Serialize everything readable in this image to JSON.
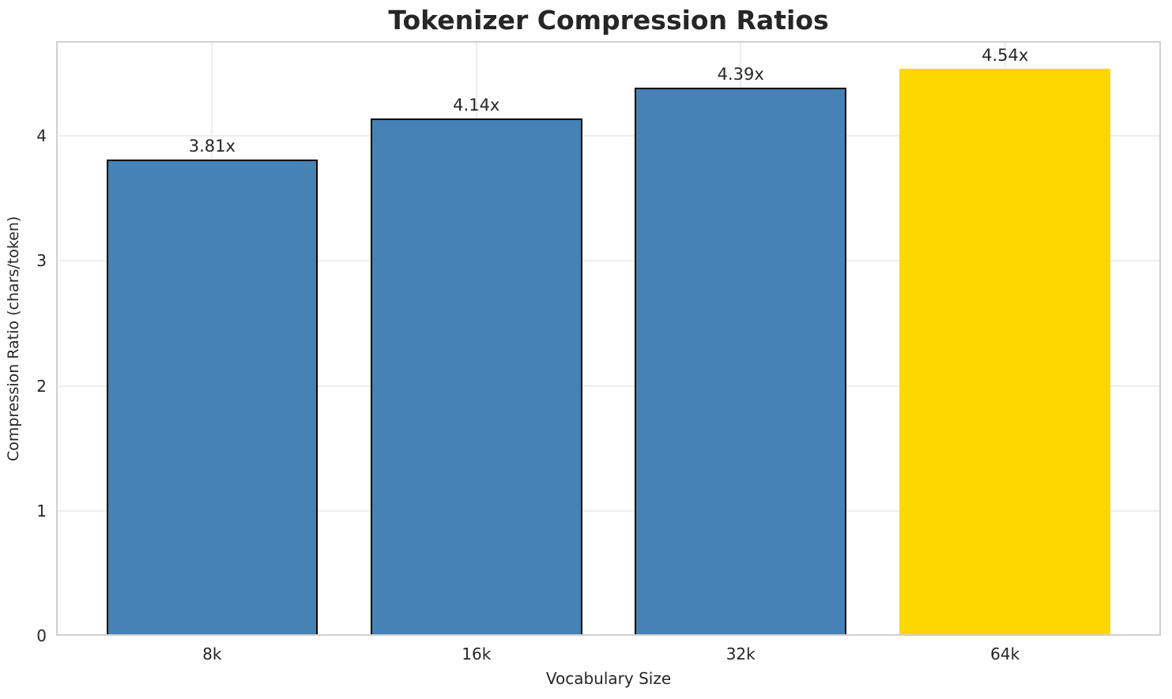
{
  "chart_data": {
    "type": "bar",
    "title": "Tokenizer Compression Ratios",
    "xlabel": "Vocabulary Size",
    "ylabel": "Compression Ratio (chars/token)",
    "categories": [
      "8k",
      "16k",
      "32k",
      "64k"
    ],
    "values": [
      3.81,
      4.14,
      4.39,
      4.54
    ],
    "bar_labels": [
      "3.81x",
      "4.14x",
      "4.39x",
      "4.54x"
    ],
    "bar_colors": [
      "#4682B4",
      "#4682B4",
      "#4682B4",
      "#FFD700"
    ],
    "bar_edge_colors": [
      "#000000",
      "#000000",
      "#000000",
      "none"
    ],
    "highlight_index": 3,
    "ylim": [
      0,
      4.76
    ],
    "yticks": [
      0,
      1,
      2,
      3,
      4
    ],
    "grid": true,
    "legend_position": "none"
  },
  "colors": {
    "bar_blue": "#4682B4",
    "bar_gold": "#FFD700",
    "bar_edge": "#000000",
    "text": "#262626",
    "grid": "#ededed",
    "spine": "#d0d0d0",
    "background": "#ffffff"
  }
}
